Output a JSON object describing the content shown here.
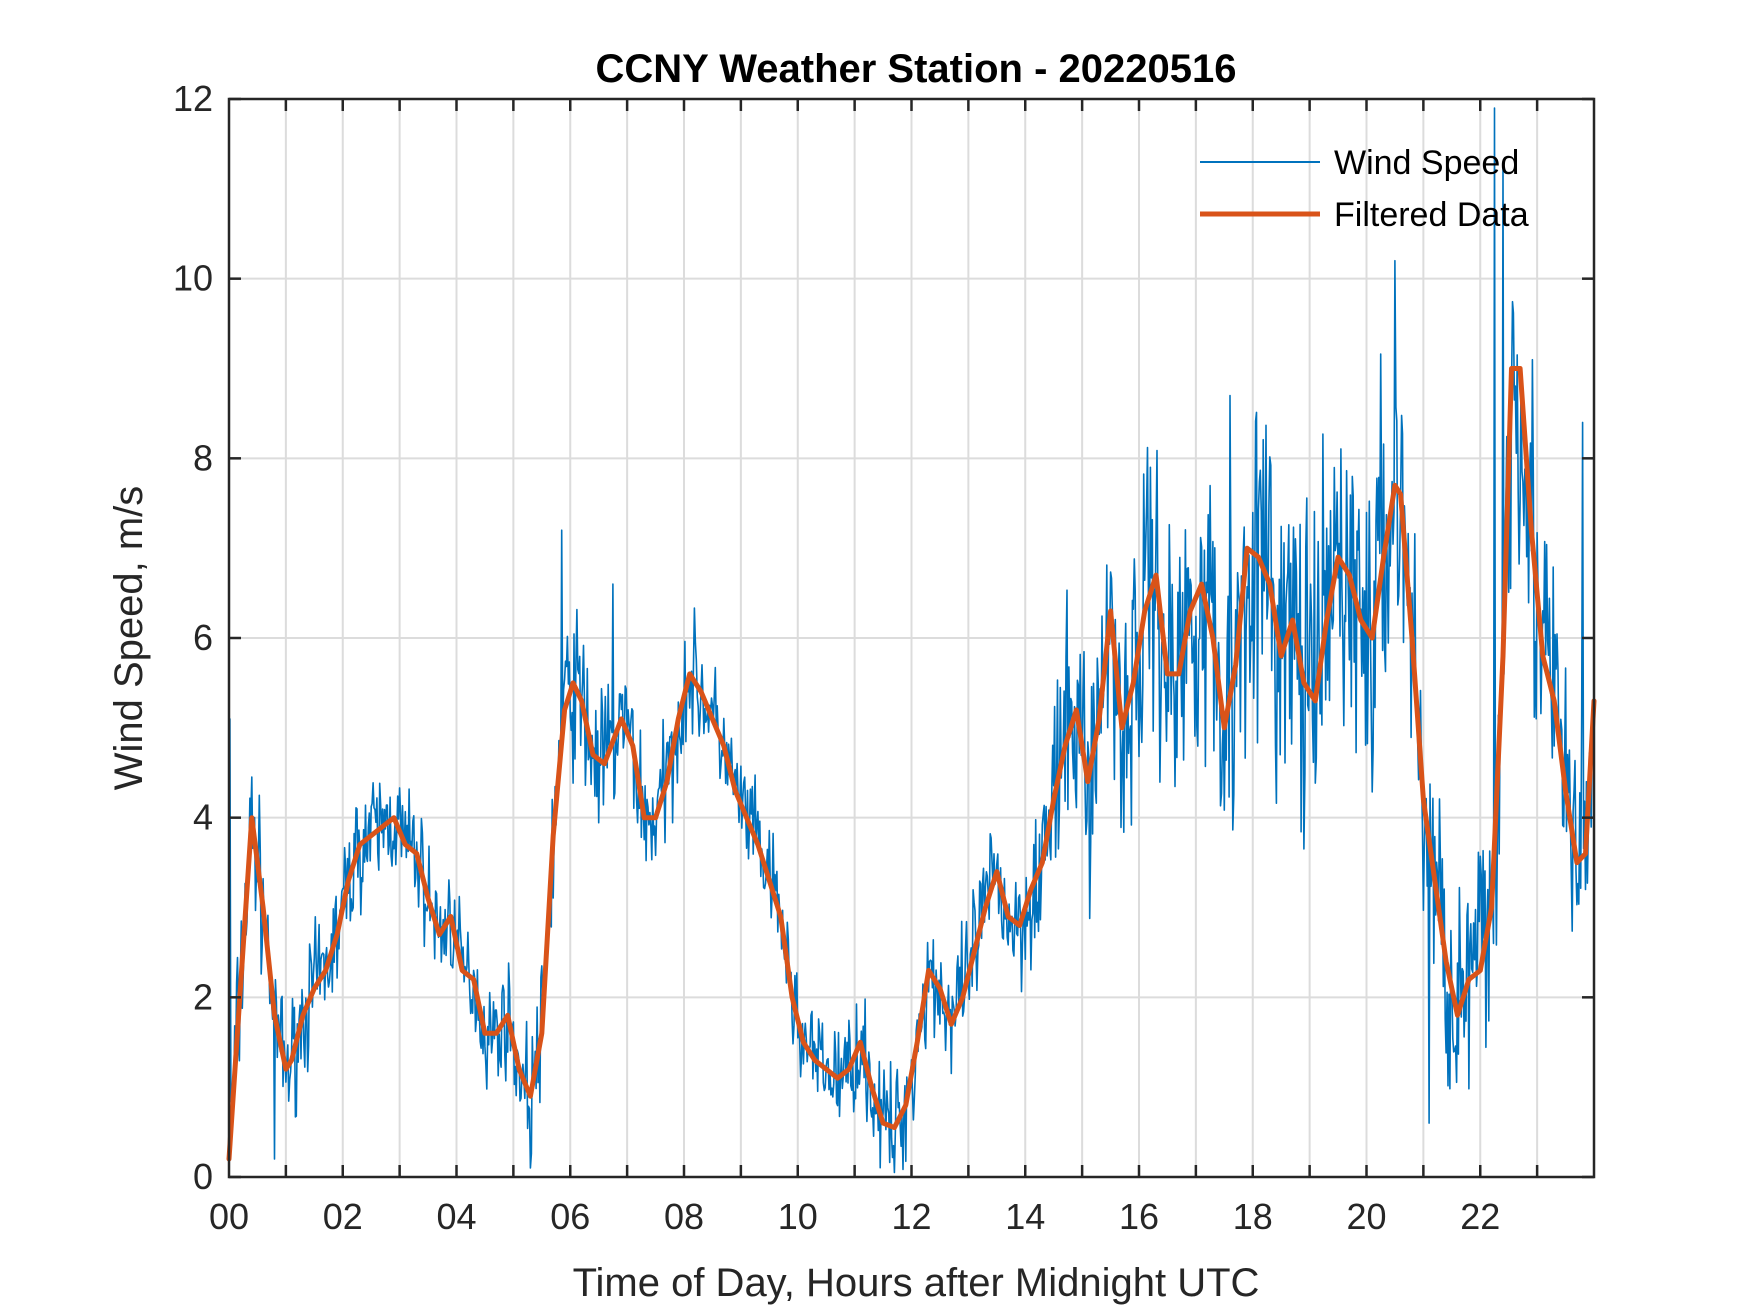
{
  "chart_data": {
    "type": "line",
    "title": "CCNY Weather Station - 20220516",
    "xlabel": "Time of Day, Hours after Midnight UTC",
    "ylabel": "Wind Speed, m/s",
    "xlim": [
      0,
      24
    ],
    "ylim": [
      0,
      12
    ],
    "xticks": [
      0,
      2,
      4,
      6,
      8,
      10,
      12,
      14,
      16,
      18,
      20,
      22
    ],
    "xtick_labels": [
      "00",
      "02",
      "04",
      "06",
      "08",
      "10",
      "12",
      "14",
      "16",
      "18",
      "20",
      "22"
    ],
    "yticks": [
      0,
      2,
      4,
      6,
      8,
      10,
      12
    ],
    "ytick_labels": [
      "0",
      "2",
      "4",
      "6",
      "8",
      "10",
      "12"
    ],
    "grid": true,
    "legend_position": "top-right",
    "series": [
      {
        "name": "Wind Speed",
        "color": "#0072BD",
        "style": "thin",
        "noise_seed": 7,
        "noise": [
          {
            "x": 0,
            "amp": 0.9
          },
          {
            "x": 1,
            "amp": 0.6
          },
          {
            "x": 3,
            "amp": 0.6
          },
          {
            "x": 5,
            "amp": 0.5
          },
          {
            "x": 6,
            "amp": 0.9
          },
          {
            "x": 8,
            "amp": 0.6
          },
          {
            "x": 10,
            "amp": 0.5
          },
          {
            "x": 12,
            "amp": 0.6
          },
          {
            "x": 14,
            "amp": 0.7
          },
          {
            "x": 15,
            "amp": 1.3
          },
          {
            "x": 17,
            "amp": 1.7
          },
          {
            "x": 19,
            "amp": 1.7
          },
          {
            "x": 20.5,
            "amp": 1.8
          },
          {
            "x": 21.5,
            "amp": 1.1
          },
          {
            "x": 22.5,
            "amp": 2.0
          },
          {
            "x": 24,
            "amp": 1.3
          }
        ],
        "peaks": [
          {
            "x": 0.02,
            "y": 5.1
          },
          {
            "x": 0.8,
            "y": 0.2
          },
          {
            "x": 5.3,
            "y": 0.1
          },
          {
            "x": 5.85,
            "y": 7.2
          },
          {
            "x": 6.75,
            "y": 6.6
          },
          {
            "x": 11.7,
            "y": 0.05
          },
          {
            "x": 16.2,
            "y": 7.9
          },
          {
            "x": 17.6,
            "y": 8.7
          },
          {
            "x": 20.5,
            "y": 10.2
          },
          {
            "x": 22.25,
            "y": 11.9
          },
          {
            "x": 22.4,
            "y": 11.3
          },
          {
            "x": 21.1,
            "y": 0.6
          },
          {
            "x": 23.8,
            "y": 8.4
          }
        ]
      },
      {
        "name": "Filtered Data",
        "color": "#D95319",
        "style": "thick",
        "x": [
          0,
          0.4,
          0.6,
          0.8,
          1.0,
          1.1,
          1.3,
          1.5,
          1.7,
          1.9,
          2.1,
          2.3,
          2.5,
          2.7,
          2.9,
          3.1,
          3.3,
          3.5,
          3.7,
          3.9,
          4.1,
          4.3,
          4.5,
          4.7,
          4.9,
          5.1,
          5.3,
          5.5,
          5.7,
          5.9,
          6.05,
          6.2,
          6.4,
          6.6,
          6.9,
          7.1,
          7.3,
          7.5,
          7.7,
          7.9,
          8.1,
          8.3,
          8.5,
          8.7,
          8.9,
          9.1,
          9.3,
          9.5,
          9.7,
          9.9,
          10.1,
          10.3,
          10.5,
          10.7,
          10.9,
          11.1,
          11.3,
          11.5,
          11.7,
          11.9,
          12.1,
          12.3,
          12.5,
          12.7,
          12.9,
          13.1,
          13.3,
          13.5,
          13.7,
          13.9,
          14.1,
          14.3,
          14.5,
          14.7,
          14.9,
          15.1,
          15.3,
          15.5,
          15.7,
          15.9,
          16.1,
          16.3,
          16.5,
          16.7,
          16.9,
          17.1,
          17.3,
          17.5,
          17.7,
          17.9,
          18.1,
          18.3,
          18.5,
          18.7,
          18.9,
          19.1,
          19.3,
          19.5,
          19.7,
          19.9,
          20.1,
          20.3,
          20.5,
          20.6,
          20.8,
          21.0,
          21.2,
          21.4,
          21.6,
          21.8,
          22.0,
          22.2,
          22.4,
          22.55,
          22.7,
          22.9,
          23.1,
          23.3,
          23.5,
          23.7,
          23.85,
          24.0
        ],
        "values": [
          0.2,
          4.0,
          3.0,
          1.8,
          1.2,
          1.3,
          1.8,
          2.1,
          2.3,
          2.7,
          3.3,
          3.7,
          3.8,
          3.9,
          4.0,
          3.7,
          3.6,
          3.1,
          2.7,
          2.9,
          2.3,
          2.2,
          1.6,
          1.6,
          1.8,
          1.2,
          0.9,
          1.6,
          3.8,
          5.2,
          5.5,
          5.3,
          4.7,
          4.6,
          5.1,
          4.8,
          4.0,
          4.0,
          4.4,
          5.1,
          5.6,
          5.4,
          5.1,
          4.8,
          4.3,
          4.0,
          3.7,
          3.3,
          2.9,
          2.0,
          1.5,
          1.3,
          1.2,
          1.1,
          1.2,
          1.5,
          1.0,
          0.6,
          0.55,
          0.8,
          1.5,
          2.3,
          2.1,
          1.7,
          2.0,
          2.5,
          3.0,
          3.4,
          2.9,
          2.8,
          3.2,
          3.5,
          4.2,
          4.8,
          5.2,
          4.4,
          5.1,
          6.3,
          5.0,
          5.5,
          6.3,
          6.7,
          5.6,
          5.6,
          6.3,
          6.6,
          6.0,
          5.0,
          5.7,
          7.0,
          6.9,
          6.6,
          5.8,
          6.2,
          5.5,
          5.3,
          6.2,
          6.9,
          6.7,
          6.2,
          6.0,
          6.9,
          7.7,
          7.6,
          6.0,
          4.2,
          3.3,
          2.4,
          1.8,
          2.2,
          2.3,
          3.0,
          5.8,
          9.0,
          9.0,
          7.2,
          5.8,
          5.3,
          4.3,
          3.5,
          3.6,
          5.3
        ]
      }
    ]
  }
}
